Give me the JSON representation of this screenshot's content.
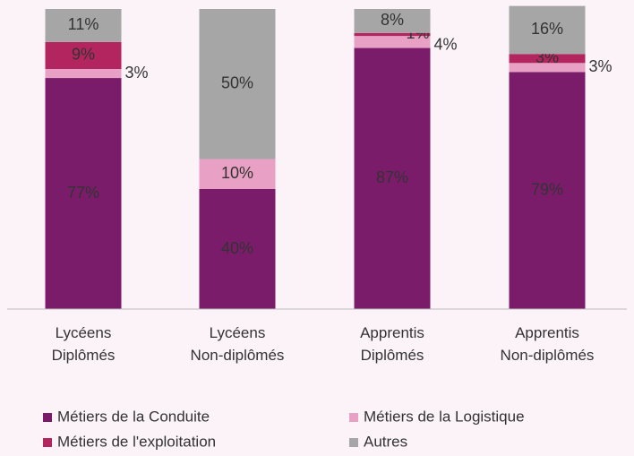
{
  "chart_data": {
    "type": "stacked_bar",
    "categories": [
      "Lycéens Diplômés",
      "Lycéens Non-diplômés",
      "Apprentis Diplômés",
      "Apprentis Non-diplômés"
    ],
    "ylim": [
      0,
      100
    ],
    "series": [
      {
        "name": "Métiers de la Conduite",
        "color": "#7b1c6a",
        "values": [
          77,
          40,
          87,
          79
        ],
        "value_labels": [
          "77%",
          "40%",
          "87%",
          "79%"
        ]
      },
      {
        "name": "Métiers de la Logistique",
        "color": "#e8a0c4",
        "values": [
          3,
          10,
          4,
          3
        ],
        "value_labels": [
          "3%",
          "10%",
          "4%",
          "3%"
        ]
      },
      {
        "name": "Métiers de l'exploitation",
        "color": "#b3255e",
        "values": [
          9,
          0,
          1,
          3
        ],
        "value_labels": [
          "9%",
          null,
          "1%",
          "3%"
        ]
      },
      {
        "name": "Autres",
        "color": "#a6a6a6",
        "values": [
          11,
          50,
          8,
          16
        ],
        "value_labels": [
          "11%",
          "50%",
          "8%",
          "16%"
        ]
      }
    ],
    "legend": "bottom"
  }
}
